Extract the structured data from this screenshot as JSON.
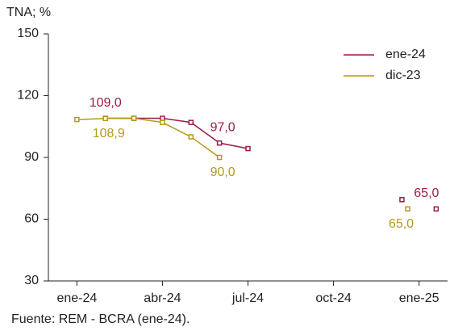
{
  "chart_data": {
    "type": "line",
    "ylabel": "TNA; %",
    "source": "Fuente: REM - BCRA (ene-24).",
    "series": [
      {
        "name": "ene-24",
        "color": "#9e1a44",
        "x": [
          1,
          2,
          3,
          4,
          5,
          6,
          null,
          11.4,
          null,
          12.6
        ],
        "values": [
          109.0,
          109,
          109,
          107,
          97.0,
          94.3,
          null,
          69.5,
          null,
          65.0
        ],
        "value_labels": [
          "109,0",
          null,
          null,
          null,
          "97,0",
          null,
          null,
          null,
          null,
          "65,0"
        ]
      },
      {
        "name": "dic-23",
        "color": "#b39b1a",
        "x": [
          0,
          1,
          2,
          3,
          4,
          5,
          null,
          11.6
        ],
        "values": [
          108.4,
          108.9,
          109,
          107,
          100,
          90.0,
          null,
          65.0
        ],
        "value_labels": [
          null,
          "108,9",
          null,
          null,
          null,
          "90,0",
          null,
          "65,0"
        ]
      }
    ],
    "xlim": [
      -1,
      13
    ],
    "xticks": [
      {
        "value": 0,
        "label": "ene-24"
      },
      {
        "value": 3,
        "label": "abr-24"
      },
      {
        "value": 6,
        "label": "jul-24"
      },
      {
        "value": 9,
        "label": "oct-24"
      },
      {
        "value": 12,
        "label": "ene-25"
      }
    ],
    "ylim": [
      30,
      150
    ],
    "yticks": [
      30,
      60,
      90,
      120,
      150
    ],
    "grid": false,
    "legend": "top-right"
  }
}
